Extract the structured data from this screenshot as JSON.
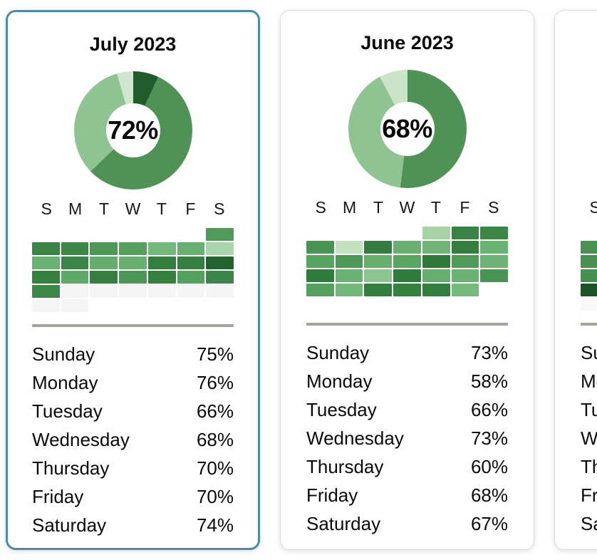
{
  "page": {
    "background": "#ffffff"
  },
  "colors": {
    "selected_card_border": "#4d89a8",
    "card_border": "#dcdcdc",
    "separator": "#a6a19b",
    "empty_day_cell": "#f5f5f5"
  },
  "day_headers": [
    "S",
    "M",
    "T",
    "W",
    "T",
    "F",
    "S"
  ],
  "chart_data": [
    {
      "type": "donut+heatmap",
      "title": "July 2023",
      "selected": true,
      "donut": {
        "center_label": "72%",
        "segments": [
          {
            "color": "#1f5c2b",
            "start": 0,
            "end": 25
          },
          {
            "color": "#4f9256",
            "start": 25,
            "end": 226
          },
          {
            "color": "#8ec491",
            "start": 226,
            "end": 344
          },
          {
            "color": "#cfe7cc",
            "start": 344,
            "end": 360
          }
        ]
      },
      "heatmap_rows": [
        [
          null,
          null,
          null,
          null,
          null,
          null,
          "#4f9a58"
        ],
        [
          "#3a8546",
          "#3d8848",
          "#4e9857",
          "#55a05e",
          "#74b97c",
          "#68b071",
          "#a9d5ab"
        ],
        [
          "#6ab173",
          "#3a8446",
          "#64ad6c",
          "#68b070",
          "#337d3e",
          "#357f40",
          "#20632c"
        ],
        [
          "#36803f",
          "#5ea868",
          "#357e40",
          "#4c9757",
          "#36803f",
          "#54a05d",
          "#3c8447"
        ],
        [
          "#3d8748",
          "#f5f5f5",
          "#f5f5f5",
          "#f5f5f5",
          "#f5f5f5",
          "#f5f5f5",
          "#f5f5f5"
        ],
        [
          "#f5f5f5",
          "#f5f5f5",
          null,
          null,
          null,
          null,
          null
        ]
      ],
      "day_stats": [
        {
          "label": "Sunday",
          "value": "75%"
        },
        {
          "label": "Monday",
          "value": "76%"
        },
        {
          "label": "Tuesday",
          "value": "66%"
        },
        {
          "label": "Wednesday",
          "value": "68%"
        },
        {
          "label": "Thursday",
          "value": "70%"
        },
        {
          "label": "Friday",
          "value": "70%"
        },
        {
          "label": "Saturday",
          "value": "74%"
        }
      ]
    },
    {
      "type": "donut+heatmap",
      "title": "June 2023",
      "selected": false,
      "donut": {
        "center_label": "68%",
        "segments": [
          {
            "color": "#4f9256",
            "start": 0,
            "end": 187
          },
          {
            "color": "#8ec491",
            "start": 187,
            "end": 332
          },
          {
            "color": "#cbe4c8",
            "start": 332,
            "end": 360
          }
        ]
      },
      "heatmap_rows": [
        [
          null,
          null,
          null,
          null,
          "#a8d2a4",
          "#3a8145",
          "#3d8648"
        ],
        [
          "#4a9355",
          "#c3e1bf",
          "#337b3e",
          "#6ab171",
          "#72b477",
          "#347d3f",
          "#69b272"
        ],
        [
          "#58a462",
          "#4e9858",
          "#66ae6e",
          "#5aa562",
          "#2f7a3b",
          "#4f9a59",
          "#6cb375"
        ],
        [
          "#2f7b3b",
          "#6ab173",
          "#8bc48e",
          "#2f7b3b",
          "#66ae6e",
          "#6ab173",
          "#4a9355"
        ],
        [
          "#55a05e",
          "#72b87a",
          "#337d3e",
          "#37813f",
          "#337d3e",
          "#74ba7c",
          null
        ]
      ],
      "day_stats": [
        {
          "label": "Sunday",
          "value": "73%"
        },
        {
          "label": "Monday",
          "value": "58%"
        },
        {
          "label": "Tuesday",
          "value": "66%"
        },
        {
          "label": "Wednesday",
          "value": "73%"
        },
        {
          "label": "Thursday",
          "value": "60%"
        },
        {
          "label": "Friday",
          "value": "68%"
        },
        {
          "label": "Saturday",
          "value": "67%"
        }
      ]
    },
    {
      "type": "donut+heatmap",
      "title": "",
      "selected": false,
      "donut": {
        "center_label": "",
        "segments": []
      },
      "heatmap_rows": [
        [
          null,
          null,
          null,
          null,
          null,
          null,
          null
        ],
        [
          "#4a9052",
          null,
          null,
          null,
          null,
          null,
          null
        ],
        [
          "#4a9052",
          null,
          null,
          null,
          null,
          null,
          null
        ],
        [
          "#478f50",
          null,
          null,
          null,
          null,
          null,
          null
        ],
        [
          "#1c5226",
          null,
          null,
          null,
          null,
          null,
          null
        ],
        [
          "#f8f8f8",
          null,
          null,
          null,
          null,
          null,
          null
        ]
      ],
      "day_stats": [
        {
          "label": "Sunday",
          "value": ""
        },
        {
          "label": "Monday",
          "value": ""
        },
        {
          "label": "Tuesday",
          "value": ""
        },
        {
          "label": "Wednesday",
          "value": ""
        },
        {
          "label": "Thursday",
          "value": ""
        },
        {
          "label": "Friday",
          "value": ""
        },
        {
          "label": "Saturday",
          "value": ""
        }
      ]
    }
  ]
}
